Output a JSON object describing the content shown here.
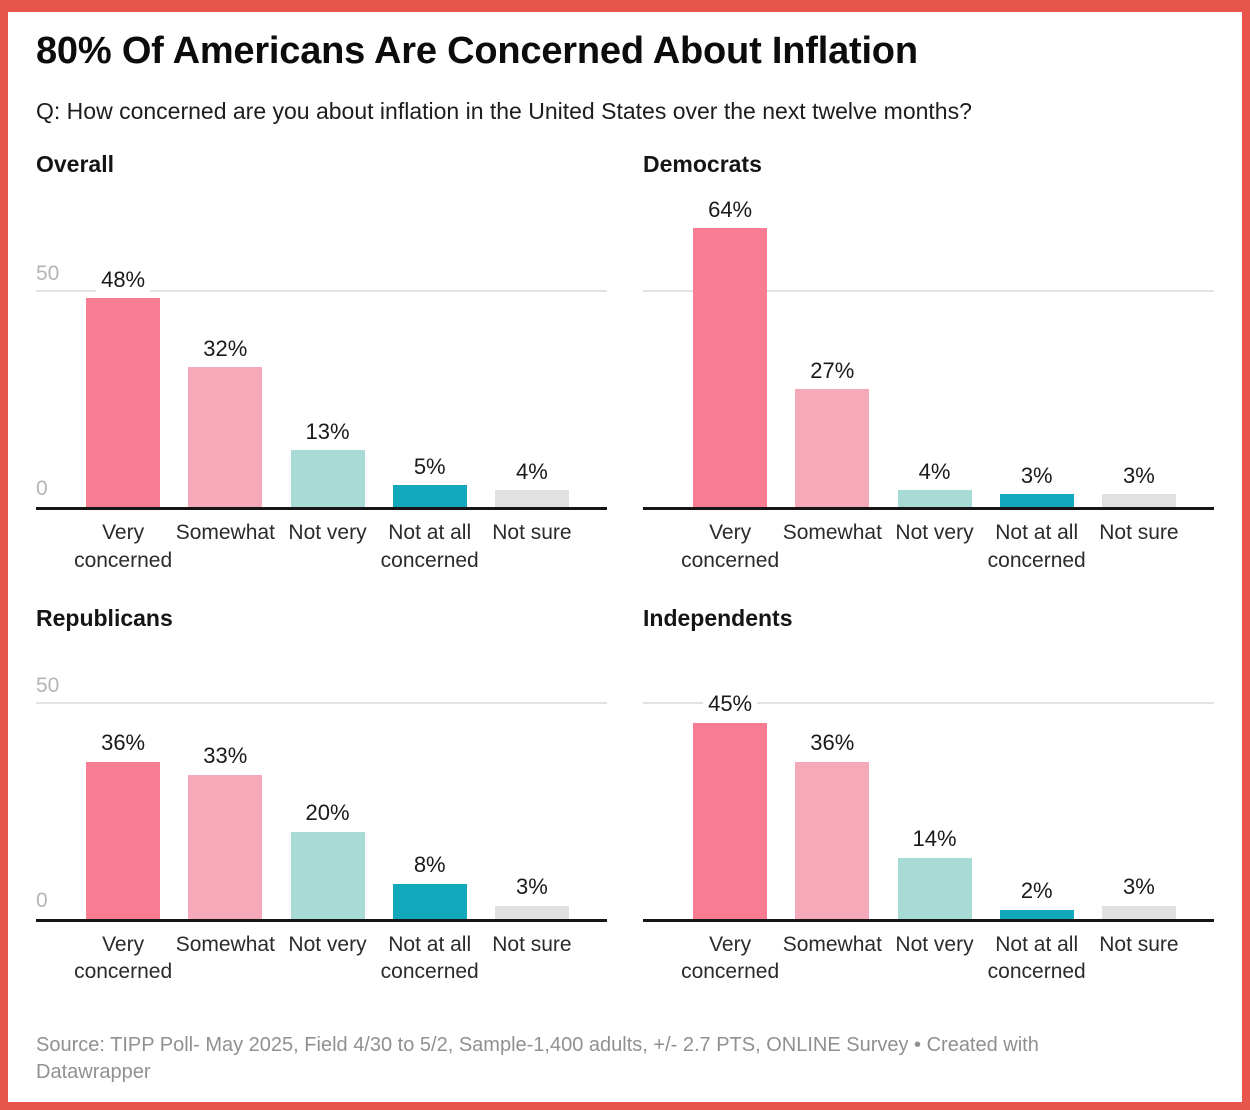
{
  "window": {
    "border_color": "#e8564b"
  },
  "header": {
    "title": "80% Of Americans Are Concerned About Inflation",
    "subtitle": "Q: How concerned are you about inflation in the United States over the next twelve months?"
  },
  "chart_data": {
    "type": "bar",
    "layout": "2x2 small multiples, vertical bars, grid on at 50, labels above bars",
    "title": "80% Of Americans Are Concerned About Inflation",
    "categories": [
      "Very concerned",
      "Somewhat",
      "Not very",
      "Not at all concerned",
      "Not sure"
    ],
    "value_suffix": "%",
    "ylim": [
      0,
      64
    ],
    "gridline_values": [
      0,
      50
    ],
    "axis_tick_labels": {
      "top": "50",
      "bottom": "0"
    },
    "bar_colors": [
      "#f87d93",
      "#f6a9b8",
      "#a8dbd6",
      "#12a9bd",
      "#e1e1e1"
    ],
    "panels": [
      {
        "title": "Overall",
        "values": [
          48,
          32,
          13,
          5,
          4
        ],
        "show_axis_labels": true
      },
      {
        "title": "Democrats",
        "values": [
          64,
          27,
          4,
          3,
          3
        ],
        "show_axis_labels": false
      },
      {
        "title": "Republicans",
        "values": [
          36,
          33,
          20,
          8,
          3
        ],
        "show_axis_labels": true
      },
      {
        "title": "Independents",
        "values": [
          45,
          36,
          14,
          2,
          3
        ],
        "show_axis_labels": false
      }
    ]
  },
  "footer": {
    "source": "Source: TIPP Poll- May 2025, Field 4/30 to 5/2, Sample-1,400 adults, +/- 2.7 PTS, ONLINE Survey • Created with Datawrapper"
  }
}
